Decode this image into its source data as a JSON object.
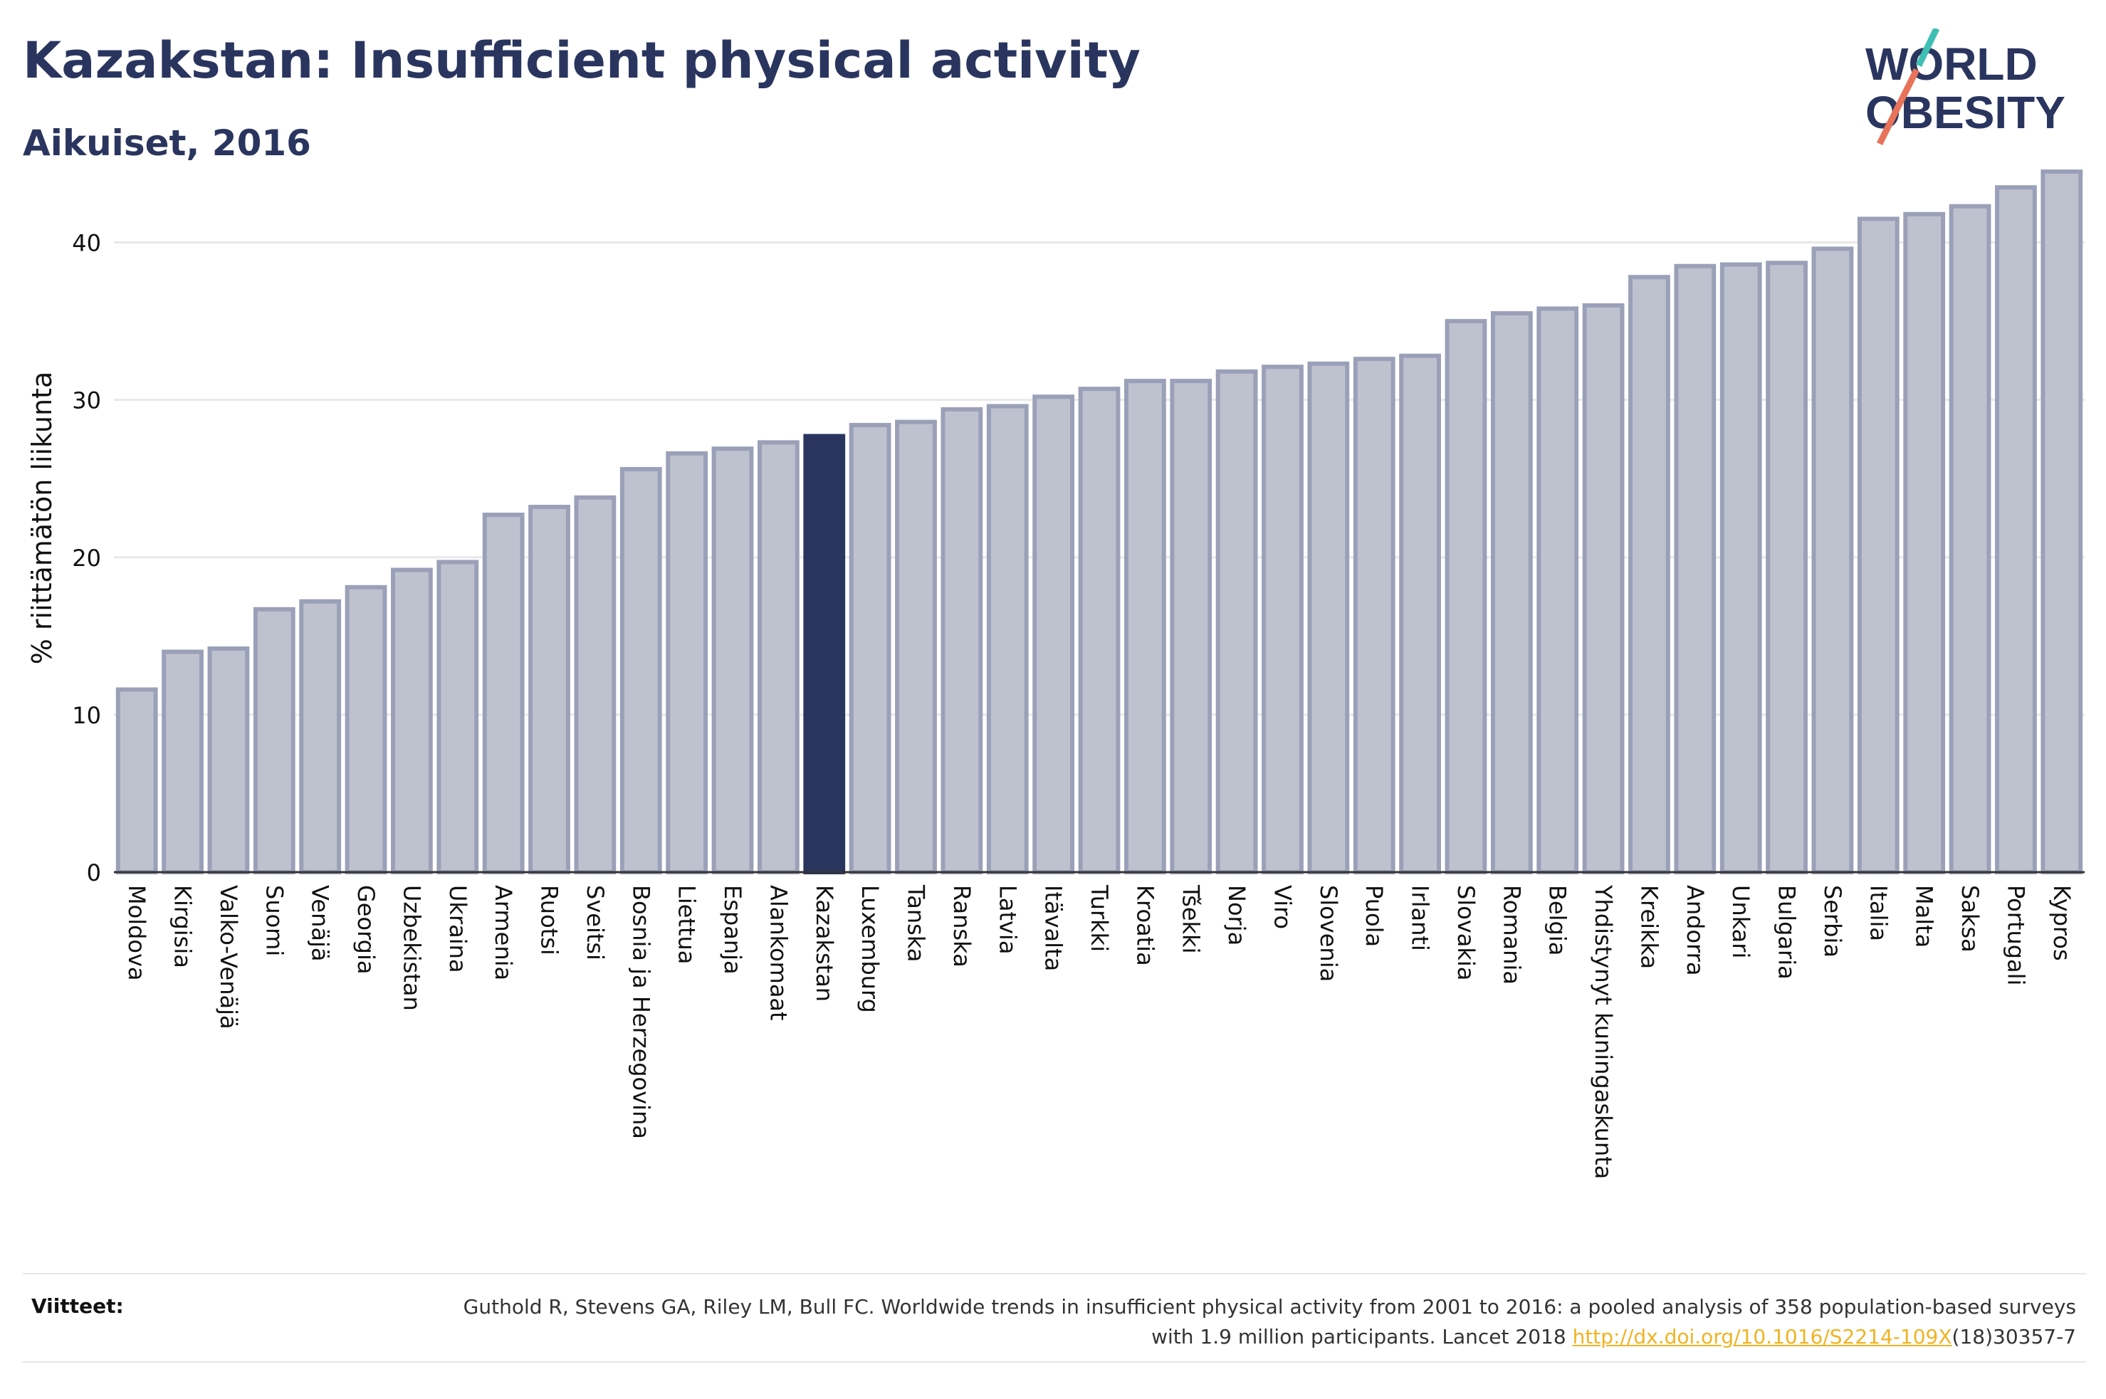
{
  "header": {
    "title": "Kazakstan: Insufficient physical activity",
    "subtitle": "Aikuiset, 2016"
  },
  "logo": {
    "line1": "WORLD",
    "line2": "OBESITY",
    "colors": {
      "text": "#2a355f",
      "slash_teal": "#3fbfb4",
      "slash_coral": "#e8735a"
    }
  },
  "chart_data": {
    "type": "bar",
    "title": "Kazakstan: Insufficient physical activity",
    "subtitle": "Aikuiset, 2016",
    "xlabel": "",
    "ylabel": "% riittämätön liikunta",
    "ylim": [
      0,
      45
    ],
    "yticks": [
      0,
      10,
      20,
      30,
      40
    ],
    "grid": true,
    "highlight": "Kazakstan",
    "colors": {
      "bar": "#bec2cf",
      "bar_edge": "#9aa0b8",
      "highlight": "#2a355f",
      "grid": "#e8e8e8",
      "axis": "#333333"
    },
    "categories": [
      "Moldova",
      "Kirgisia",
      "Valko-Venäjä",
      "Suomi",
      "Venäjä",
      "Georgia",
      "Uzbekistan",
      "Ukraina",
      "Armenia",
      "Ruotsi",
      "Sveitsi",
      "Bosnia ja Herzegovina",
      "Liettua",
      "Espanja",
      "Alankomaat",
      "Kazakstan",
      "Luxemburg",
      "Tanska",
      "Ranska",
      "Latvia",
      "Itävalta",
      "Turkki",
      "Kroatia",
      "Tšekki",
      "Norja",
      "Viro",
      "Slovenia",
      "Puola",
      "Irlanti",
      "Slovakia",
      "Romania",
      "Belgia",
      "Yhdistynyt kuningaskunta",
      "Kreikka",
      "Andorra",
      "Unkari",
      "Bulgaria",
      "Serbia",
      "Italia",
      "Malta",
      "Saksa",
      "Portugali",
      "Kypros"
    ],
    "values": [
      11.6,
      14.0,
      14.2,
      16.7,
      17.2,
      18.1,
      19.2,
      19.7,
      22.7,
      23.2,
      23.8,
      25.6,
      26.6,
      26.9,
      27.3,
      27.7,
      28.4,
      28.6,
      29.4,
      29.6,
      30.2,
      30.7,
      31.2,
      31.2,
      31.8,
      32.1,
      32.3,
      32.6,
      32.8,
      35.0,
      35.5,
      35.8,
      36.0,
      37.8,
      38.5,
      38.6,
      38.7,
      39.6,
      41.5,
      41.8,
      42.3,
      43.5,
      44.5
    ]
  },
  "footer": {
    "refs_label": "Viitteet:",
    "refs_text_before": "Guthold R, Stevens GA, Riley LM, Bull FC. Worldwide trends in insufficient physical activity from 2001 to 2016: a pooled analysis of 358 population-based surveys with 1.9 million participants. Lancet 2018 ",
    "refs_link": "http://dx.doi.org/10.1016/S2214-109X",
    "refs_text_after": "(18)30357-7"
  }
}
